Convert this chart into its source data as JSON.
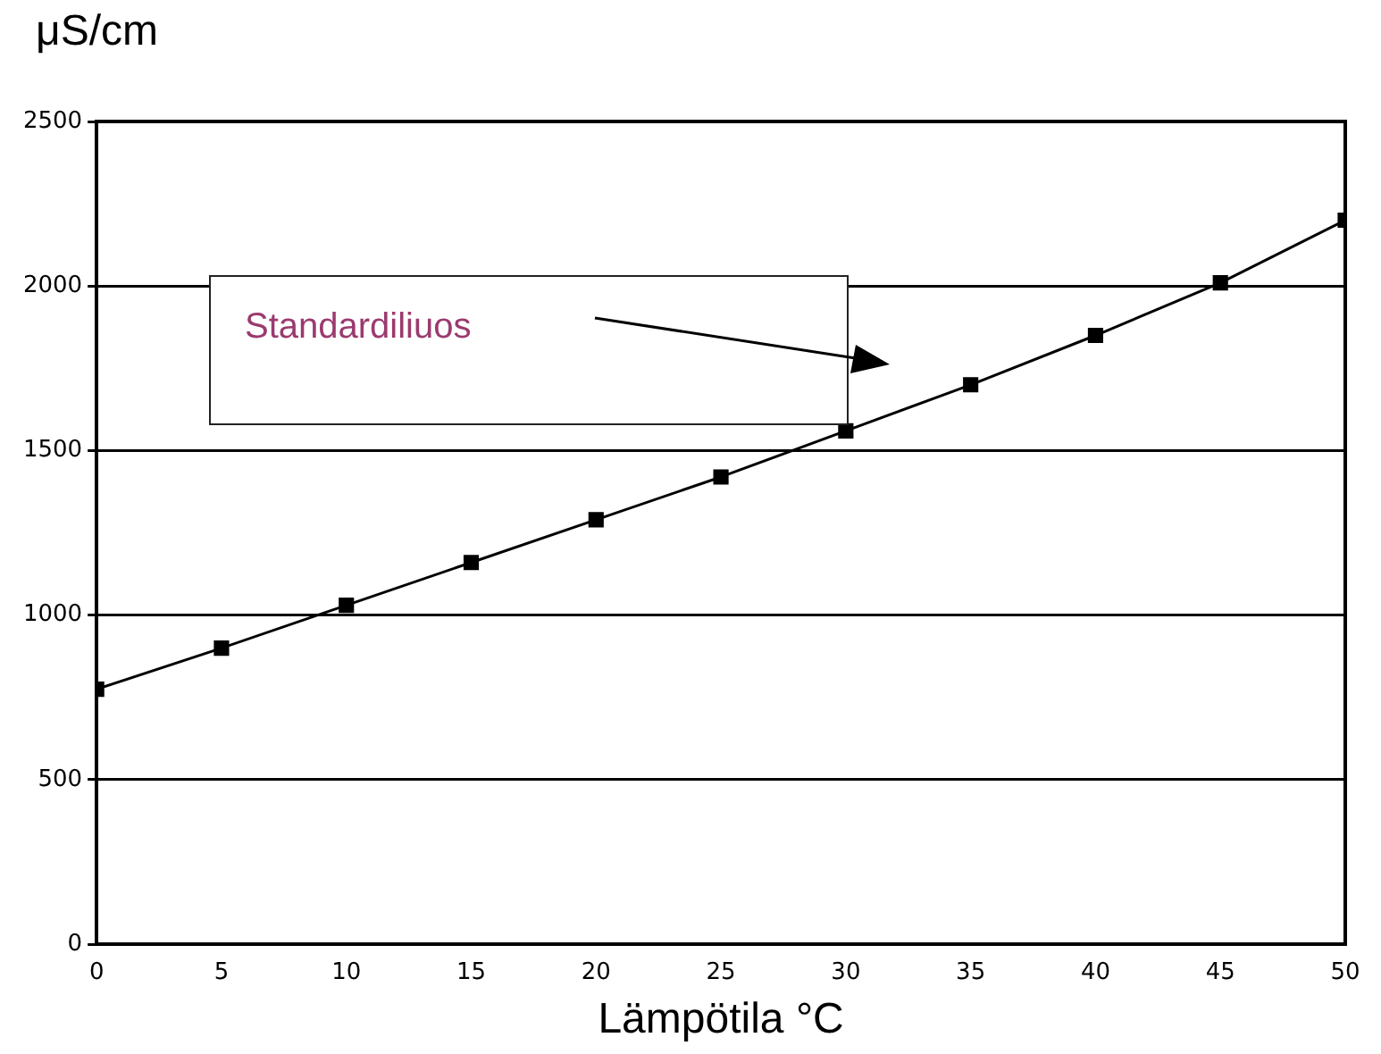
{
  "chart_data": {
    "type": "line",
    "xlabel": "Lämpötila °C",
    "ylabel": "μS/cm",
    "x": [
      0,
      5,
      10,
      15,
      20,
      25,
      30,
      35,
      40,
      45,
      50
    ],
    "series": [
      {
        "name": "Standardiliuos",
        "color": "#000000",
        "values": [
          775,
          900,
          1030,
          1160,
          1290,
          1420,
          1560,
          1700,
          1850,
          2010,
          2200
        ]
      }
    ],
    "xlim": [
      0,
      50
    ],
    "xticks": [
      0,
      5,
      10,
      15,
      20,
      25,
      30,
      35,
      40,
      45,
      50
    ],
    "ylim": [
      0,
      2500
    ],
    "yticks": [
      0,
      500,
      1000,
      1500,
      2000,
      2500
    ],
    "grid": "y",
    "marker": "square",
    "line_style": "solid",
    "legend": false
  }
}
